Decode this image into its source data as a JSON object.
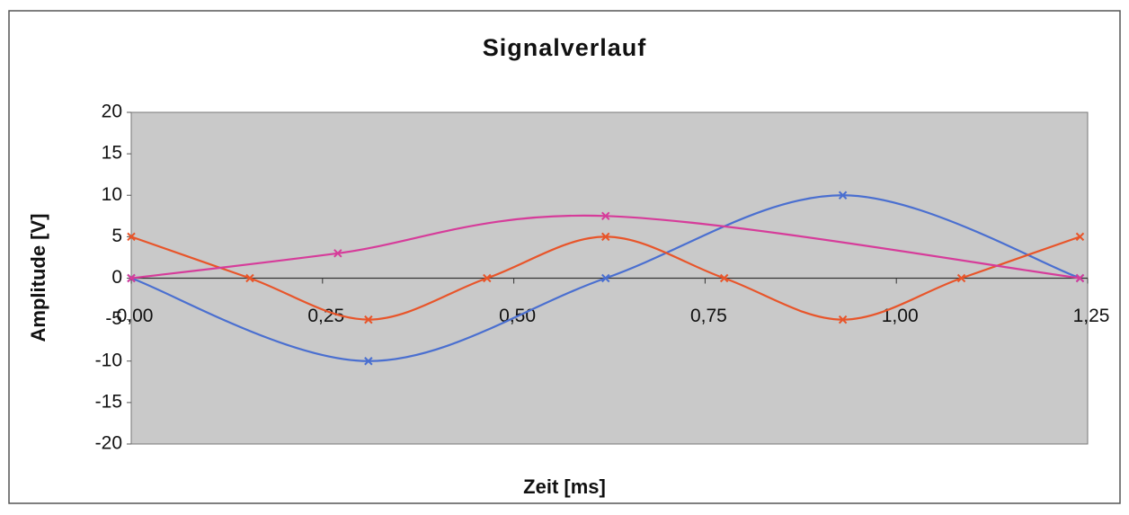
{
  "chart_data": {
    "type": "line",
    "title": "Signalverlauf",
    "xlabel": "Zeit [ms]",
    "ylabel": "Amplitude [V]",
    "xlim": [
      0,
      1.25
    ],
    "ylim": [
      -20,
      20
    ],
    "xticks": [
      {
        "value": 0,
        "label": "0,00"
      },
      {
        "value": 0.25,
        "label": "0,25"
      },
      {
        "value": 0.5,
        "label": "0,50"
      },
      {
        "value": 0.75,
        "label": "0,75"
      },
      {
        "value": 1,
        "label": "1,00"
      },
      {
        "value": 1.25,
        "label": "1,25"
      }
    ],
    "yticks": [
      -20,
      -15,
      -10,
      -5,
      0,
      5,
      10,
      15,
      20
    ],
    "grid": false,
    "smooth": true,
    "series": [
      {
        "color": "#4a6fd0",
        "x": [
          0,
          0.31,
          0.62,
          0.93,
          1.24
        ],
        "values": [
          0,
          -10,
          0,
          10,
          0
        ]
      },
      {
        "color": "#e8552a",
        "x": [
          0,
          0.155,
          0.31,
          0.465,
          0.62,
          0.775,
          0.93,
          1.085,
          1.24
        ],
        "values": [
          5,
          0,
          -5,
          0,
          5,
          0,
          -5,
          0,
          5
        ]
      },
      {
        "color": "#d63c9a",
        "x": [
          0,
          0.27,
          0.62,
          1.24
        ],
        "values": [
          0,
          3,
          7.5,
          0
        ]
      }
    ]
  }
}
